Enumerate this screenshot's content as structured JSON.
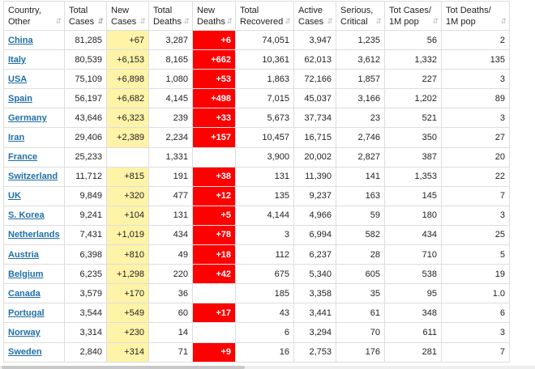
{
  "header": [
    {
      "label": "Country,\nOther",
      "sort": "⇵",
      "active": false
    },
    {
      "label": "Total\nCases",
      "sort": "⇵",
      "active": true
    },
    {
      "label": "New\nCases",
      "sort": "⇵",
      "active": false
    },
    {
      "label": "Total\nDeaths",
      "sort": "⇵",
      "active": false
    },
    {
      "label": "New\nDeaths",
      "sort": "⇵",
      "active": false
    },
    {
      "label": "Total\nRecovered",
      "sort": "⇵",
      "active": false
    },
    {
      "label": "Active\nCases",
      "sort": "⇵",
      "active": false
    },
    {
      "label": "Serious,\nCritical",
      "sort": "⇵",
      "active": false
    },
    {
      "label": "Tot Cases/\n1M pop",
      "sort": "⇵",
      "active": false
    },
    {
      "label": "Tot Deaths/\n1M pop",
      "sort": "⇵",
      "active": false
    }
  ],
  "colors": {
    "new_cases_bg": "#fff3a8",
    "new_deaths_bg": "#ff0000",
    "link": "#1f6fa8",
    "border": "#dedede"
  },
  "rows": [
    {
      "country": "China",
      "total_cases": "81,285",
      "new_cases": "+67",
      "total_deaths": "3,287",
      "new_deaths": "+6",
      "total_recovered": "74,051",
      "active_cases": "3,947",
      "serious": "1,235",
      "cases_1m": "56",
      "deaths_1m": "2"
    },
    {
      "country": "Italy",
      "total_cases": "80,539",
      "new_cases": "+6,153",
      "total_deaths": "8,165",
      "new_deaths": "+662",
      "total_recovered": "10,361",
      "active_cases": "62,013",
      "serious": "3,612",
      "cases_1m": "1,332",
      "deaths_1m": "135"
    },
    {
      "country": "USA",
      "total_cases": "75,109",
      "new_cases": "+6,898",
      "total_deaths": "1,080",
      "new_deaths": "+53",
      "total_recovered": "1,863",
      "active_cases": "72,166",
      "serious": "1,857",
      "cases_1m": "227",
      "deaths_1m": "3"
    },
    {
      "country": "Spain",
      "total_cases": "56,197",
      "new_cases": "+6,682",
      "total_deaths": "4,145",
      "new_deaths": "+498",
      "total_recovered": "7,015",
      "active_cases": "45,037",
      "serious": "3,166",
      "cases_1m": "1,202",
      "deaths_1m": "89"
    },
    {
      "country": "Germany",
      "total_cases": "43,646",
      "new_cases": "+6,323",
      "total_deaths": "239",
      "new_deaths": "+33",
      "total_recovered": "5,673",
      "active_cases": "37,734",
      "serious": "23",
      "cases_1m": "521",
      "deaths_1m": "3"
    },
    {
      "country": "Iran",
      "total_cases": "29,406",
      "new_cases": "+2,389",
      "total_deaths": "2,234",
      "new_deaths": "+157",
      "total_recovered": "10,457",
      "active_cases": "16,715",
      "serious": "2,746",
      "cases_1m": "350",
      "deaths_1m": "27"
    },
    {
      "country": "France",
      "total_cases": "25,233",
      "new_cases": "",
      "total_deaths": "1,331",
      "new_deaths": "",
      "total_recovered": "3,900",
      "active_cases": "20,002",
      "serious": "2,827",
      "cases_1m": "387",
      "deaths_1m": "20"
    },
    {
      "country": "Switzerland",
      "total_cases": "11,712",
      "new_cases": "+815",
      "total_deaths": "191",
      "new_deaths": "+38",
      "total_recovered": "131",
      "active_cases": "11,390",
      "serious": "141",
      "cases_1m": "1,353",
      "deaths_1m": "22"
    },
    {
      "country": "UK",
      "total_cases": "9,849",
      "new_cases": "+320",
      "total_deaths": "477",
      "new_deaths": "+12",
      "total_recovered": "135",
      "active_cases": "9,237",
      "serious": "163",
      "cases_1m": "145",
      "deaths_1m": "7"
    },
    {
      "country": "S. Korea",
      "total_cases": "9,241",
      "new_cases": "+104",
      "total_deaths": "131",
      "new_deaths": "+5",
      "total_recovered": "4,144",
      "active_cases": "4,966",
      "serious": "59",
      "cases_1m": "180",
      "deaths_1m": "3"
    },
    {
      "country": "Netherlands",
      "total_cases": "7,431",
      "new_cases": "+1,019",
      "total_deaths": "434",
      "new_deaths": "+78",
      "total_recovered": "3",
      "active_cases": "6,994",
      "serious": "582",
      "cases_1m": "434",
      "deaths_1m": "25"
    },
    {
      "country": "Austria",
      "total_cases": "6,398",
      "new_cases": "+810",
      "total_deaths": "49",
      "new_deaths": "+18",
      "total_recovered": "112",
      "active_cases": "6,237",
      "serious": "28",
      "cases_1m": "710",
      "deaths_1m": "5"
    },
    {
      "country": "Belgium",
      "total_cases": "6,235",
      "new_cases": "+1,298",
      "total_deaths": "220",
      "new_deaths": "+42",
      "total_recovered": "675",
      "active_cases": "5,340",
      "serious": "605",
      "cases_1m": "538",
      "deaths_1m": "19"
    },
    {
      "country": "Canada",
      "total_cases": "3,579",
      "new_cases": "+170",
      "total_deaths": "36",
      "new_deaths": "",
      "total_recovered": "185",
      "active_cases": "3,358",
      "serious": "35",
      "cases_1m": "95",
      "deaths_1m": "1.0"
    },
    {
      "country": "Portugal",
      "total_cases": "3,544",
      "new_cases": "+549",
      "total_deaths": "60",
      "new_deaths": "+17",
      "total_recovered": "43",
      "active_cases": "3,441",
      "serious": "61",
      "cases_1m": "348",
      "deaths_1m": "6"
    },
    {
      "country": "Norway",
      "total_cases": "3,314",
      "new_cases": "+230",
      "total_deaths": "14",
      "new_deaths": "",
      "total_recovered": "6",
      "active_cases": "3,294",
      "serious": "70",
      "cases_1m": "611",
      "deaths_1m": "3"
    },
    {
      "country": "Sweden",
      "total_cases": "2,840",
      "new_cases": "+314",
      "total_deaths": "71",
      "new_deaths": "+9",
      "total_recovered": "16",
      "active_cases": "2,753",
      "serious": "176",
      "cases_1m": "281",
      "deaths_1m": "7"
    }
  ]
}
